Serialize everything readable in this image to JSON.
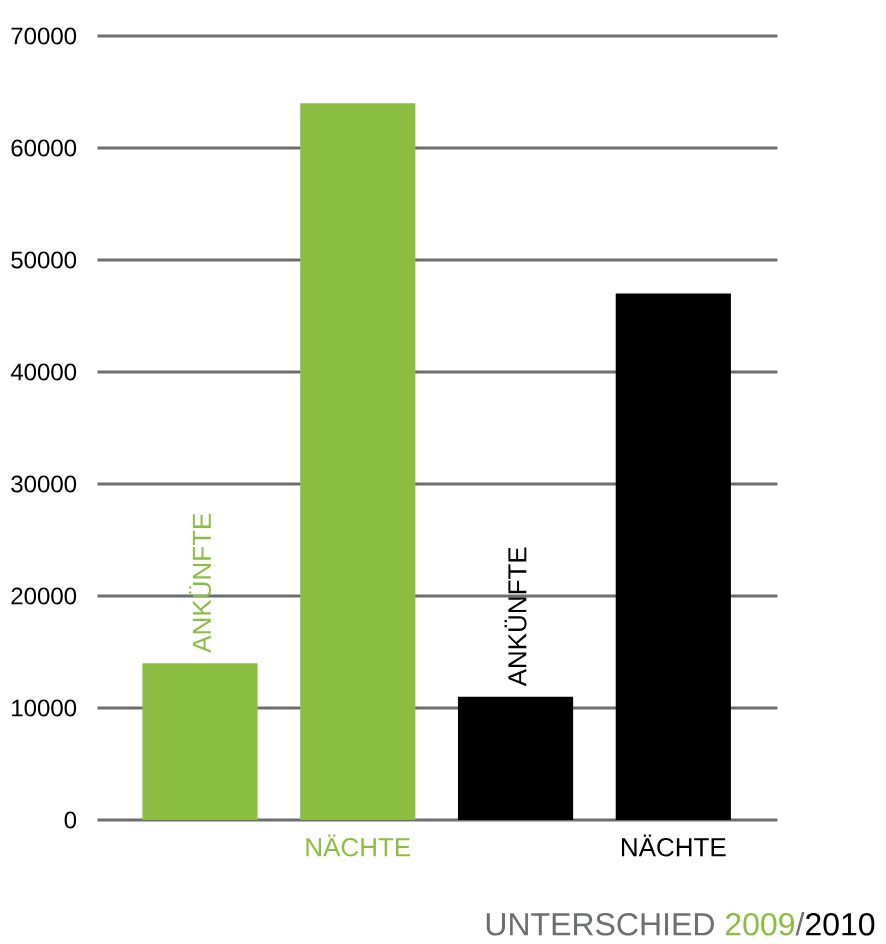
{
  "chart_data": {
    "type": "bar",
    "title": "UNTERSCHIED",
    "categories": [
      "ANKÜNFTE",
      "NÄCHTE",
      "ANKÜNFTE",
      "NÄCHTE"
    ],
    "series": [
      {
        "name": "2009",
        "color": "#8bbd41",
        "values": [
          14000,
          64000,
          null,
          null
        ]
      },
      {
        "name": "2010",
        "color": "#000000",
        "values": [
          null,
          null,
          11000,
          47000
        ]
      }
    ],
    "ylim": [
      0,
      70000
    ],
    "yticks": [
      0,
      10000,
      20000,
      30000,
      40000,
      50000,
      60000,
      70000
    ],
    "grid": "y",
    "legend": "bottom right",
    "annotations": [
      "/"
    ]
  }
}
